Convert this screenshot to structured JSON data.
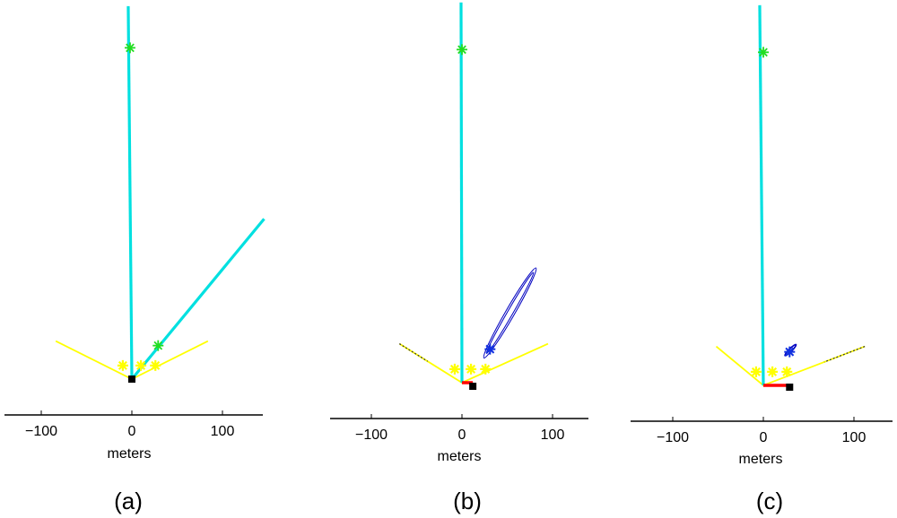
{
  "chart_data": [
    {
      "type": "scatter",
      "panel_label": "(a)",
      "xlabel": "meters",
      "xticks": [
        -100,
        0,
        100
      ],
      "xlim": [
        -145,
        145
      ],
      "array": {
        "points": [
          [
            -84,
            42
          ],
          [
            0,
            0
          ],
          [
            84,
            42
          ]
        ],
        "color": "#ffff00"
      },
      "array_markers": [
        [
          -10,
          15
        ],
        [
          10,
          15
        ],
        [
          26,
          15
        ]
      ],
      "sensor": [
        0,
        0
      ],
      "bearing_lines": [
        {
          "points": [
            [
              0,
              0
            ],
            [
              -4,
              412
            ]
          ],
          "color": "#00e0e0"
        },
        {
          "points": [
            [
              0,
              0
            ],
            [
              146,
              177
            ]
          ],
          "color": "#00e0e0"
        }
      ],
      "sources": [
        [
          -2,
          366
        ],
        [
          29,
          37
        ]
      ]
    },
    {
      "type": "scatter",
      "panel_label": "(b)",
      "xlabel": "meters",
      "xticks": [
        -100,
        0,
        100
      ],
      "xlim": [
        -145,
        145
      ],
      "array": {
        "points": [
          [
            -69,
            43
          ],
          [
            0,
            0
          ],
          [
            95,
            43
          ]
        ],
        "color": "#ffff00"
      },
      "array_markers": [
        [
          -8,
          15
        ],
        [
          10,
          15
        ],
        [
          26,
          15
        ]
      ],
      "sensor": [
        12,
        -4
      ],
      "bearing_lines": [
        {
          "points": [
            [
              0,
              0
            ],
            [
              -1,
              420
            ]
          ],
          "color": "#00e0e0"
        }
      ],
      "track": {
        "points": [
          [
            0,
            0
          ],
          [
            12,
            0
          ]
        ],
        "color": "#ff0000"
      },
      "sources": [
        [
          0,
          368
        ]
      ],
      "estimate": [
        31,
        37
      ],
      "ellipse": {
        "center": [
          53,
          77
        ],
        "rx": 58,
        "ry": 5,
        "angle_deg": -60,
        "color": "#0000c0"
      }
    },
    {
      "type": "scatter",
      "panel_label": "(c)",
      "xlabel": "meters",
      "xticks": [
        -100,
        0,
        100
      ],
      "xlim": [
        -145,
        145
      ],
      "array": {
        "points": [
          [
            -52,
            43
          ],
          [
            0,
            0
          ],
          [
            112,
            43
          ]
        ],
        "color": "#ffff00"
      },
      "array_markers": [
        [
          -8,
          15
        ],
        [
          10,
          15
        ],
        [
          26,
          15
        ]
      ],
      "sensor": [
        29,
        -2
      ],
      "bearing_lines": [
        {
          "points": [
            [
              0,
              0
            ],
            [
              -4,
              420
            ]
          ],
          "color": "#00e0e0"
        }
      ],
      "track": {
        "points": [
          [
            0,
            0
          ],
          [
            29,
            0
          ]
        ],
        "color": "#ff0000"
      },
      "sources": [
        [
          0,
          368
        ]
      ],
      "estimate": [
        29,
        37
      ],
      "ellipse": {
        "center": [
          30,
          39
        ],
        "rx": 9,
        "ry": 2,
        "angle_deg": -45,
        "color": "#0000c0"
      }
    }
  ]
}
